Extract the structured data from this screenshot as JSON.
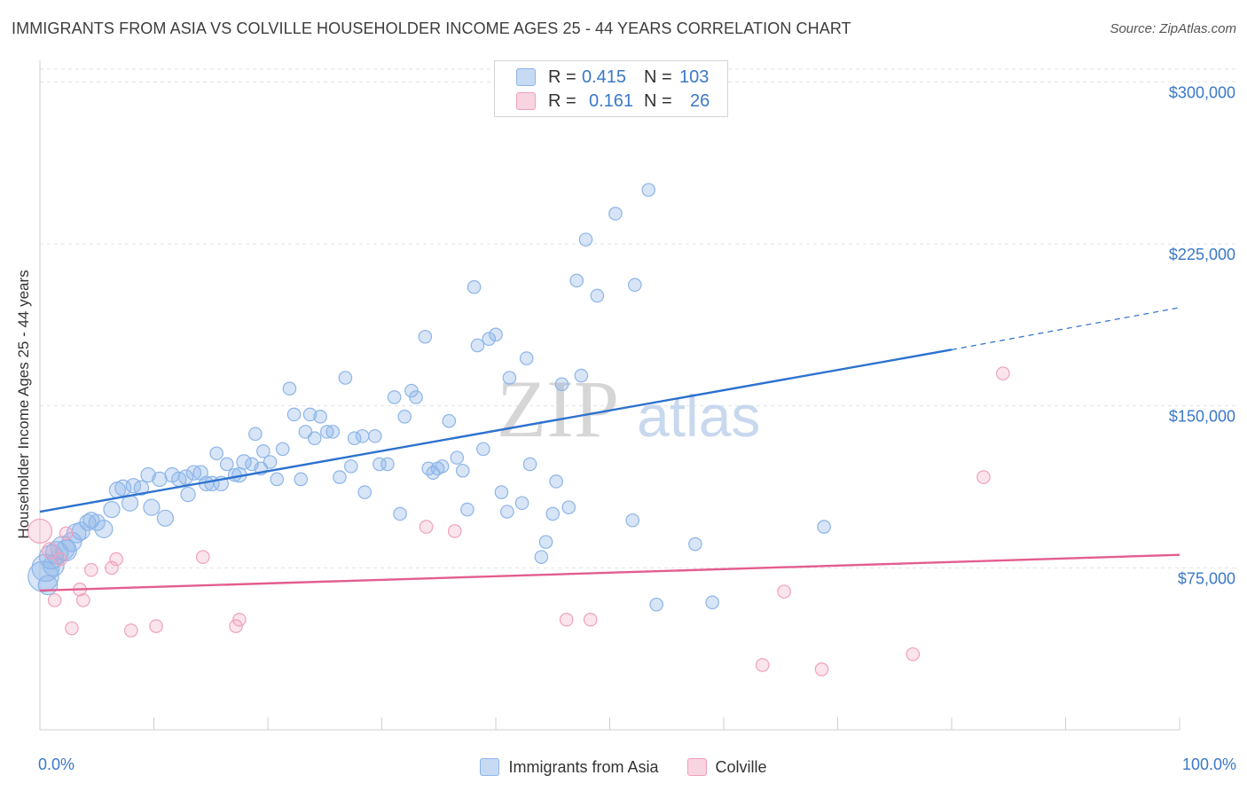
{
  "title": "IMMIGRANTS FROM ASIA VS COLVILLE HOUSEHOLDER INCOME AGES 25 - 44 YEARS CORRELATION CHART",
  "source": "Source: ZipAtlas.com",
  "watermark": {
    "part1": "ZIP",
    "part2": "atlas"
  },
  "legend": {
    "rows": [
      {
        "r_label": "R =",
        "r_value": "0.415",
        "n_label": "N =",
        "n_value": "103"
      },
      {
        "r_label": "R =",
        "r_value": "0.161",
        "n_label": "N =",
        "n_value": "26"
      }
    ]
  },
  "chart_data": {
    "type": "scatter",
    "title": "IMMIGRANTS FROM ASIA VS COLVILLE HOUSEHOLDER INCOME AGES 25 - 44 YEARS CORRELATION CHART",
    "xlabel": "",
    "ylabel": "Householder Income Ages 25 - 44 years",
    "xlim": [
      0,
      100
    ],
    "ylim": [
      0,
      310000
    ],
    "x_tick_labels": [
      "0.0%",
      "100.0%"
    ],
    "y_ticks": [
      {
        "value": 75000,
        "label": "$75,000"
      },
      {
        "value": 150000,
        "label": "$150,000"
      },
      {
        "value": 225000,
        "label": "$225,000"
      },
      {
        "value": 300000,
        "label": "$300,000"
      }
    ],
    "x_minor_ticks": [
      0,
      10,
      20,
      30,
      40,
      50,
      60,
      70,
      80,
      90,
      100
    ],
    "series": [
      {
        "name": "Immigrants from Asia",
        "color": "#8db5e8",
        "fill": "rgba(141,181,232,0.35)",
        "line_color": "#2d72cf",
        "R": 0.415,
        "N": 103,
        "trend": {
          "x0": 0,
          "y0": 101000,
          "x1": 80,
          "y1": 176000,
          "x_dash_end": 100,
          "y_dash_end": 195500
        },
        "points": [
          [
            0.3,
            71000,
            1.9
          ],
          [
            0.5,
            75000,
            1.7
          ],
          [
            1.0,
            80000,
            1.5
          ],
          [
            1.2,
            76000,
            1.3
          ],
          [
            1.5,
            82000,
            1.4
          ],
          [
            2.0,
            84000,
            1.5
          ],
          [
            2.3,
            83000,
            1.3
          ],
          [
            2.8,
            87000,
            1.2
          ],
          [
            3.2,
            91000,
            1.2
          ],
          [
            3.6,
            92000,
            1.1
          ],
          [
            4.2,
            96000,
            1.0
          ],
          [
            4.5,
            97000,
            1.0
          ],
          [
            5.0,
            96000,
            1.0
          ],
          [
            5.6,
            93000,
            1.1
          ],
          [
            6.3,
            102000,
            1.0
          ],
          [
            6.8,
            111000,
            1.0
          ],
          [
            7.3,
            112000,
            1.0
          ],
          [
            7.9,
            105000,
            1.0
          ],
          [
            8.2,
            113000,
            0.9
          ],
          [
            8.9,
            112000,
            0.9
          ],
          [
            9.5,
            118000,
            0.9
          ],
          [
            9.8,
            103000,
            1.0
          ],
          [
            10.5,
            116000,
            0.9
          ],
          [
            11.0,
            98000,
            1.0
          ],
          [
            11.6,
            118000,
            0.9
          ],
          [
            12.2,
            116000,
            0.9
          ],
          [
            12.8,
            117000,
            0.9
          ],
          [
            13.0,
            109000,
            0.9
          ],
          [
            13.5,
            119000,
            0.9
          ],
          [
            14.1,
            119000,
            0.9
          ],
          [
            14.6,
            114000,
            0.9
          ],
          [
            15.1,
            114000,
            0.9
          ],
          [
            15.5,
            128000,
            0.8
          ],
          [
            15.9,
            114000,
            0.9
          ],
          [
            16.4,
            123000,
            0.8
          ],
          [
            17.1,
            118000,
            0.8
          ],
          [
            17.5,
            118000,
            0.9
          ],
          [
            17.9,
            124000,
            0.9
          ],
          [
            18.6,
            123000,
            0.8
          ],
          [
            18.9,
            137000,
            0.8
          ],
          [
            19.4,
            121000,
            0.8
          ],
          [
            19.6,
            129000,
            0.8
          ],
          [
            20.2,
            124000,
            0.8
          ],
          [
            20.8,
            116000,
            0.8
          ],
          [
            21.3,
            130000,
            0.8
          ],
          [
            21.9,
            158000,
            0.8
          ],
          [
            22.3,
            146000,
            0.8
          ],
          [
            22.9,
            116000,
            0.8
          ],
          [
            23.3,
            138000,
            0.8
          ],
          [
            23.7,
            146000,
            0.8
          ],
          [
            24.1,
            135000,
            0.8
          ],
          [
            24.6,
            145000,
            0.8
          ],
          [
            25.2,
            138000,
            0.8
          ],
          [
            25.7,
            138000,
            0.8
          ],
          [
            26.3,
            117000,
            0.8
          ],
          [
            26.8,
            163000,
            0.8
          ],
          [
            27.3,
            122000,
            0.8
          ],
          [
            27.6,
            135000,
            0.8
          ],
          [
            28.3,
            136000,
            0.8
          ],
          [
            28.5,
            110000,
            0.8
          ],
          [
            29.4,
            136000,
            0.8
          ],
          [
            29.8,
            123000,
            0.8
          ],
          [
            30.5,
            123000,
            0.8
          ],
          [
            31.1,
            154000,
            0.8
          ],
          [
            31.6,
            100000,
            0.8
          ],
          [
            32.0,
            145000,
            0.8
          ],
          [
            32.6,
            157000,
            0.8
          ],
          [
            33.0,
            154000,
            0.8
          ],
          [
            33.8,
            182000,
            0.8
          ],
          [
            34.1,
            121000,
            0.8
          ],
          [
            34.5,
            119000,
            0.8
          ],
          [
            34.9,
            121000,
            0.8
          ],
          [
            35.3,
            122000,
            0.8
          ],
          [
            35.9,
            143000,
            0.8
          ],
          [
            36.6,
            126000,
            0.8
          ],
          [
            37.1,
            120000,
            0.8
          ],
          [
            37.5,
            102000,
            0.8
          ],
          [
            38.1,
            205000,
            0.8
          ],
          [
            38.4,
            178000,
            0.8
          ],
          [
            38.9,
            130000,
            0.8
          ],
          [
            39.4,
            181000,
            0.8
          ],
          [
            40.0,
            183000,
            0.8
          ],
          [
            40.5,
            110000,
            0.8
          ],
          [
            41.0,
            101000,
            0.8
          ],
          [
            41.2,
            163000,
            0.8
          ],
          [
            42.3,
            105000,
            0.8
          ],
          [
            42.7,
            172000,
            0.8
          ],
          [
            43.0,
            123000,
            0.8
          ],
          [
            44.0,
            80000,
            0.8
          ],
          [
            44.4,
            87000,
            0.8
          ],
          [
            45.0,
            100000,
            0.8
          ],
          [
            45.3,
            115000,
            0.8
          ],
          [
            45.8,
            160000,
            0.8
          ],
          [
            46.4,
            103000,
            0.8
          ],
          [
            47.1,
            208000,
            0.8
          ],
          [
            47.5,
            164000,
            0.8
          ],
          [
            47.9,
            227000,
            0.8
          ],
          [
            48.9,
            201000,
            0.8
          ],
          [
            50.5,
            239000,
            0.8
          ],
          [
            52.0,
            97000,
            0.8
          ],
          [
            52.2,
            206000,
            0.8
          ],
          [
            53.4,
            250000,
            0.8
          ],
          [
            54.1,
            58000,
            0.8
          ],
          [
            57.5,
            86000,
            0.8
          ],
          [
            59.0,
            59000,
            0.8
          ],
          [
            68.8,
            94000,
            0.8
          ],
          [
            0.7,
            67000,
            1.2
          ]
        ]
      },
      {
        "name": "Colville",
        "color": "#f0a0bd",
        "fill": "rgba(240,160,189,0.28)",
        "line_color": "#e35d90",
        "R": 0.161,
        "N": 26,
        "trend": {
          "x0": 0,
          "y0": 64500,
          "x1": 100,
          "y1": 81000
        },
        "points": [
          [
            0.0,
            92000,
            1.5
          ],
          [
            1.3,
            60000,
            0.8
          ],
          [
            1.8,
            79000,
            0.8
          ],
          [
            2.3,
            91000,
            0.8
          ],
          [
            2.8,
            47000,
            0.8
          ],
          [
            3.5,
            65000,
            0.8
          ],
          [
            3.8,
            60000,
            0.8
          ],
          [
            4.5,
            74000,
            0.8
          ],
          [
            6.3,
            75000,
            0.8
          ],
          [
            6.7,
            79000,
            0.8
          ],
          [
            8.0,
            46000,
            0.8
          ],
          [
            10.2,
            48000,
            0.8
          ],
          [
            14.3,
            80000,
            0.8
          ],
          [
            17.2,
            48000,
            0.8
          ],
          [
            17.5,
            51000,
            0.8
          ],
          [
            33.9,
            94000,
            0.8
          ],
          [
            36.4,
            92000,
            0.8
          ],
          [
            46.2,
            51000,
            0.8
          ],
          [
            48.3,
            51000,
            0.8
          ],
          [
            63.4,
            30000,
            0.8
          ],
          [
            65.3,
            64000,
            0.8
          ],
          [
            68.6,
            28000,
            0.8
          ],
          [
            76.6,
            35000,
            0.8
          ],
          [
            82.8,
            117000,
            0.8
          ],
          [
            84.5,
            165000,
            0.8
          ],
          [
            0.9,
            83000,
            1.0
          ]
        ]
      }
    ]
  }
}
